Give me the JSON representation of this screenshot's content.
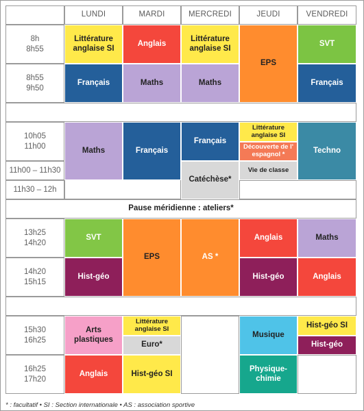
{
  "days": [
    "LUNDI",
    "MARDI",
    "MERCREDI",
    "JEUDI",
    "VENDREDI"
  ],
  "times": {
    "t1": "8h\n8h55",
    "t2": "8h55\n9h50",
    "t3": "10h05\n11h00",
    "t4": "11h00 – 11h30",
    "t5": "11h30 – 12h",
    "t6": "13h25\n14h20",
    "t7": "14h20\n15h15",
    "t8": "15h30\n16h25",
    "t9": "16h25\n17h20"
  },
  "lunch": "Pause méridienne : ateliers*",
  "courses": {
    "mon_1": "Littérature anglaise SI",
    "tue_1": "Anglais",
    "wed_1": "Littérature anglaise SI",
    "thu_12": "EPS",
    "fri_1": "SVT",
    "mon_2": "Français",
    "tue_2": "Maths",
    "wed_2": "Maths",
    "fri_2": "Français",
    "mon_3": "Maths",
    "tue_3": "Français",
    "wed_3": "Français",
    "thu_3a": "Littérature anglaise SI",
    "thu_3b": "Découverte de l' espagnol *",
    "fri_3": "Techno",
    "wed_45": "Catéchèse*",
    "thu_4": "Vie de classe",
    "mon_6": "SVT",
    "tue_67": "EPS",
    "wed_67": "AS *",
    "thu_6": "Anglais",
    "fri_6": "Maths",
    "mon_7": "Hist-géo",
    "thu_7": "Hist-géo",
    "fri_7": "Anglais",
    "mon_8": "Arts plastiques",
    "tue_8a": "Littérature anglaise SI",
    "tue_8b": "Euro*",
    "thu_8": "Musique",
    "fri_8a": "Hist-géo SI",
    "fri_8b": "Hist-géo",
    "mon_9": "Anglais",
    "tue_9": "Hist-géo SI",
    "thu_9": "Physique-chimie"
  },
  "colors": {
    "yellow": "#ffe94a",
    "red": "#f4473c",
    "blue": "#245f9a",
    "lavender": "#baa4d6",
    "orange": "#ff8c2e",
    "green": "#7cc443",
    "teal": "#3b8aa5",
    "salmon": "#f47a56",
    "grey": "#d8d8d8",
    "green_light": "#82c646",
    "maroon": "#8e1f5a",
    "pink": "#f6a0c8",
    "cyan": "#4fc3e8",
    "teal_green": "#16a78d"
  },
  "legend": "* : facultatif • SI : Section internationale • AS : association sportive"
}
